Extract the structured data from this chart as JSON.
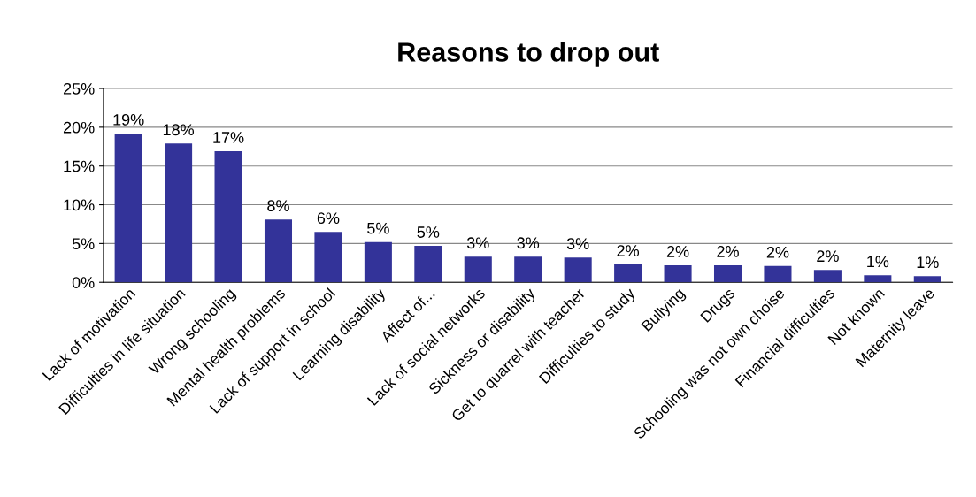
{
  "chart_data": {
    "type": "bar",
    "title": "Reasons to drop out",
    "categories": [
      "Lack of motivation",
      "Difficulties in life situation",
      "Wrong schooling",
      "Mental health problems",
      "Lack of support in school",
      "Learning disability",
      "Affect of...",
      "Lack of social networks",
      "Sickness or disability",
      "Get to quarrel with teacher",
      "Difficulties to study",
      "Bullying",
      "Drugs",
      "Schooling was not own choise",
      "Financial difficulties",
      "Not known",
      "Maternity leave"
    ],
    "values": [
      19.2,
      17.9,
      16.9,
      8.1,
      6.5,
      5.2,
      4.7,
      3.3,
      3.3,
      3.2,
      2.3,
      2.2,
      2.2,
      2.1,
      1.6,
      0.9,
      0.8
    ],
    "value_labels": [
      "19%",
      "18%",
      "17%",
      "8%",
      "6%",
      "5%",
      "5%",
      "3%",
      "3%",
      "3%",
      "2%",
      "2%",
      "2%",
      "2%",
      "2%",
      "1%",
      "1%"
    ],
    "color": "#333399",
    "ylim": [
      0,
      25
    ],
    "yticks": [
      {
        "value": 0,
        "label": "0%"
      },
      {
        "value": 5,
        "label": "5%"
      },
      {
        "value": 10,
        "label": "10%"
      },
      {
        "value": 15,
        "label": "15%"
      },
      {
        "value": 20,
        "label": "20%"
      },
      {
        "value": 25,
        "label": "25%"
      }
    ],
    "grid": "y"
  }
}
